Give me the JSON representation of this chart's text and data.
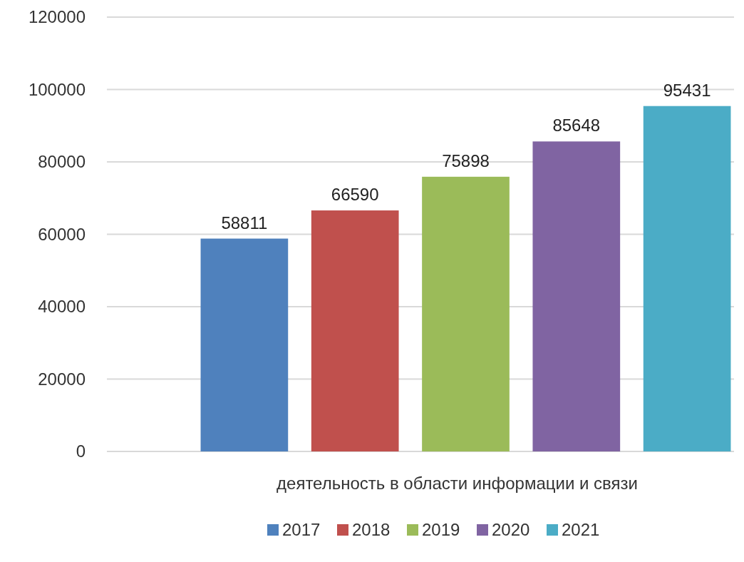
{
  "chart_data": {
    "type": "bar",
    "categories": [
      "деятельность в области информации и связи"
    ],
    "series": [
      {
        "name": "2017",
        "color": "#4f81bd",
        "values": [
          58811
        ]
      },
      {
        "name": "2018",
        "color": "#c0504d",
        "values": [
          66590
        ]
      },
      {
        "name": "2019",
        "color": "#9bbb59",
        "values": [
          75898
        ]
      },
      {
        "name": "2020",
        "color": "#8064a2",
        "values": [
          85648
        ]
      },
      {
        "name": "2021",
        "color": "#4bacc6",
        "values": [
          95431
        ]
      }
    ],
    "ylim": [
      0,
      120000
    ],
    "yticks": [
      0,
      20000,
      40000,
      60000,
      80000,
      100000,
      120000
    ],
    "grid": "y",
    "legend": "bottom",
    "data_labels": true
  }
}
